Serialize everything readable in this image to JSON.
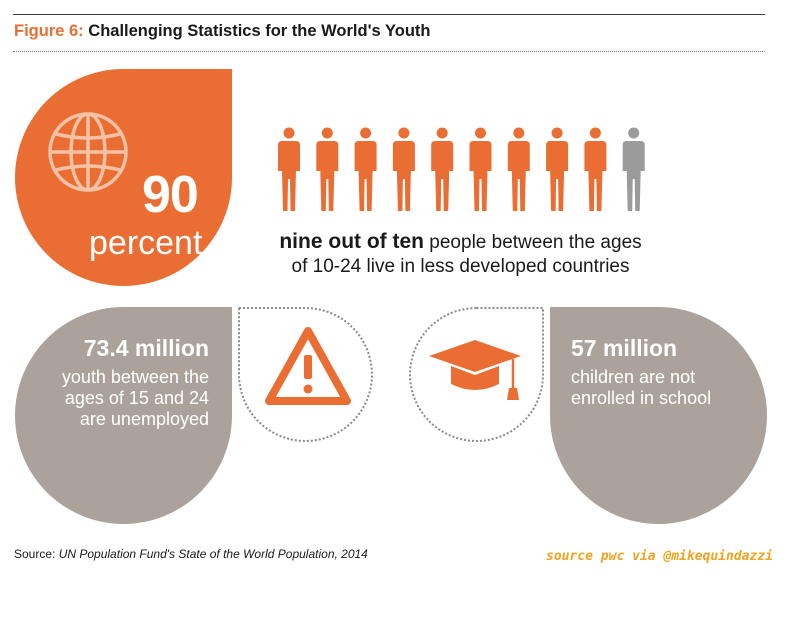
{
  "header": {
    "figure_label": "Figure 6:",
    "title": "Challenging Statistics for the World's Youth"
  },
  "colors": {
    "accent": "#ea6e33",
    "grey_panel": "#aba39b",
    "person_inactive": "#9b9b9b",
    "credit": "#f3a21b"
  },
  "main_stat": {
    "number": "90",
    "unit": "percent",
    "icon": "globe-icon",
    "people_total": 10,
    "people_highlighted": 9,
    "caption_bold": "nine out of ten",
    "caption_rest_line1": "people between the ages",
    "caption_line2": "of 10-24 live in less developed countries"
  },
  "unemployment": {
    "headline": "73.4 million",
    "desc_lines": [
      "youth between the",
      "ages of 15 and 24",
      "are unemployed"
    ],
    "icon": "warning-icon"
  },
  "schooling": {
    "headline": "57 million",
    "desc_lines": [
      "children are not",
      "enrolled in school"
    ],
    "icon": "graduation-cap-icon"
  },
  "footer": {
    "source_label": "Source:",
    "source_text": "UN Population Fund's State of the World Population, 2014",
    "credit": "source pwc via @mikequindazzi"
  }
}
